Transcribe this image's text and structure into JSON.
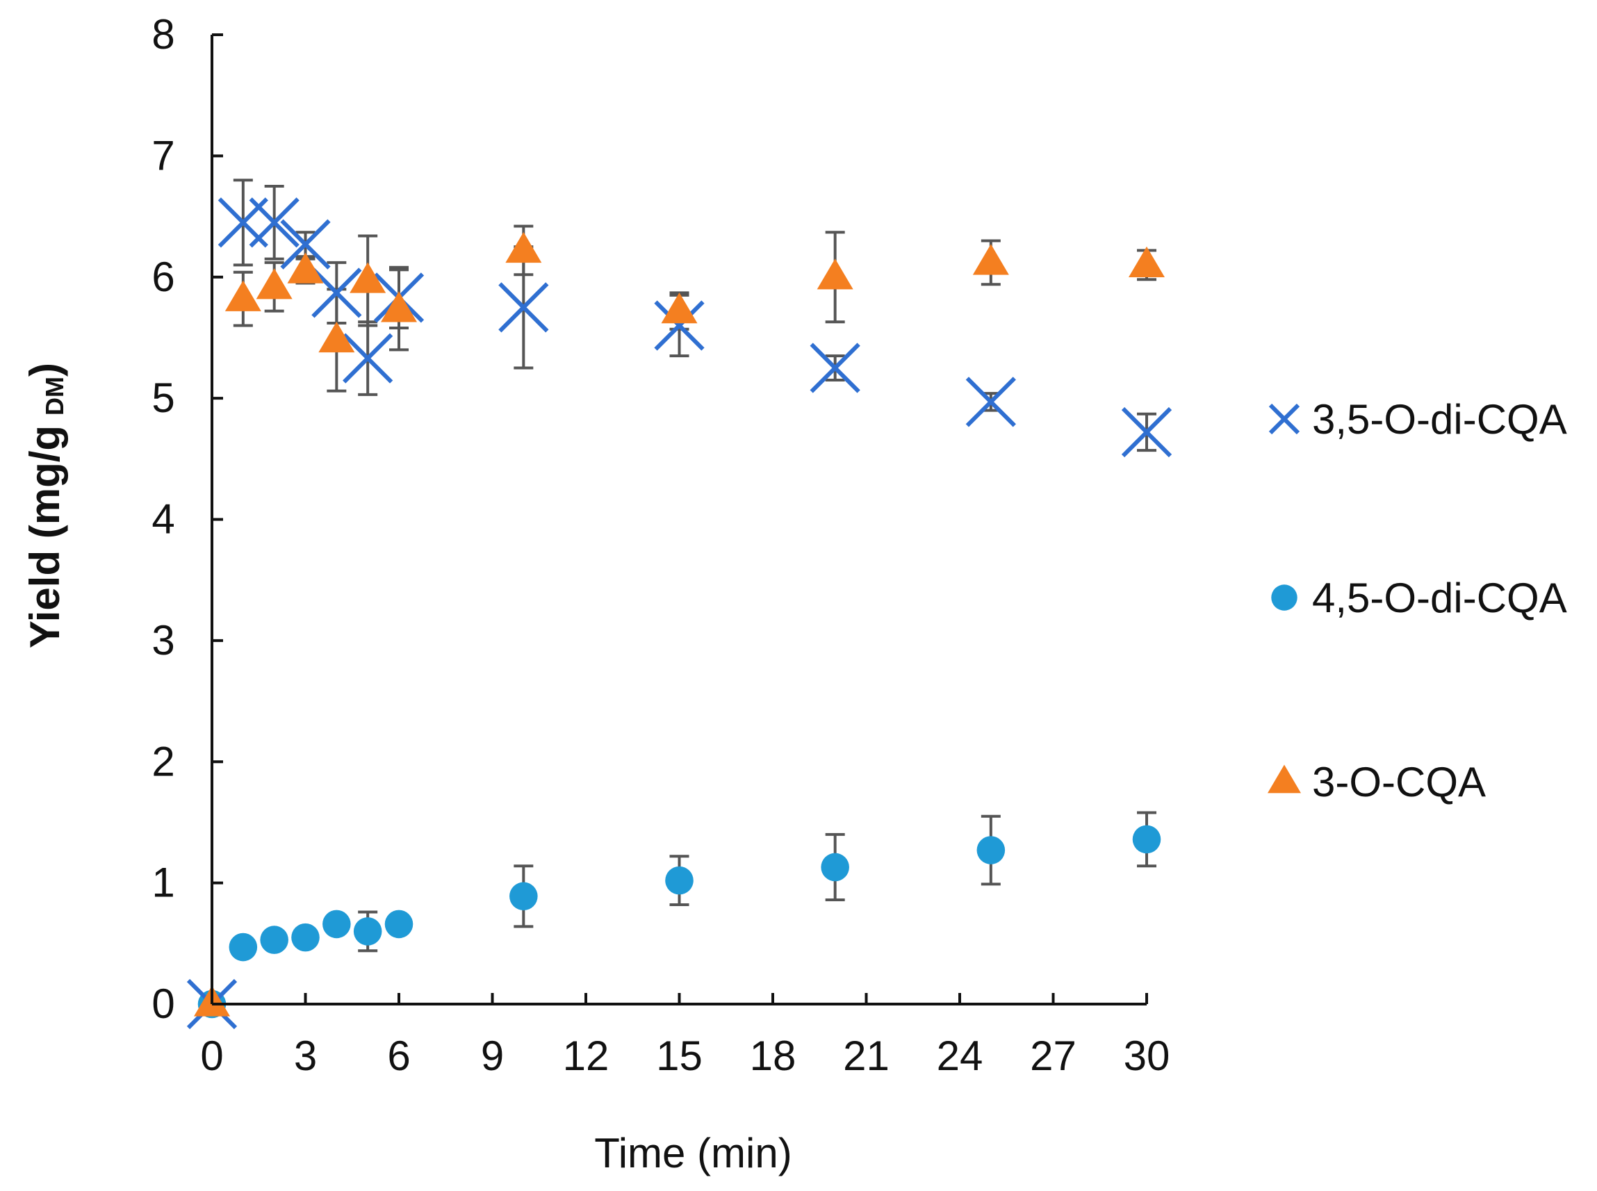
{
  "chart_data": {
    "type": "scatter",
    "title": "",
    "xlabel": "Time  (min)",
    "ylabel": {
      "main": "Yield (mg/g",
      "subscript": "DM",
      "close": ")"
    },
    "xlim": [
      0,
      30
    ],
    "ylim": [
      0,
      8
    ],
    "xticks": [
      "0",
      "3",
      "6",
      "9",
      "12",
      "15",
      "18",
      "21",
      "24",
      "27",
      "30"
    ],
    "yticks": [
      "0",
      "1",
      "2",
      "3",
      "4",
      "5",
      "6",
      "7",
      "8"
    ],
    "grid": false,
    "legend_position": "right",
    "series": [
      {
        "name": "3,5-O-di-CQA",
        "marker": "x",
        "color": "#2f6fd1",
        "points": [
          {
            "x": 0,
            "y": 0,
            "err": 0
          },
          {
            "x": 1,
            "y": 6.45,
            "err": 0.35
          },
          {
            "x": 2,
            "y": 6.45,
            "err": 0.3
          },
          {
            "x": 3,
            "y": 6.27,
            "err": 0.1
          },
          {
            "x": 4,
            "y": 5.87,
            "err": 0.25
          },
          {
            "x": 5,
            "y": 5.33,
            "err": 0.3
          },
          {
            "x": 6,
            "y": 5.83,
            "err": 0.25
          },
          {
            "x": 10,
            "y": 5.75,
            "err": 0.5
          },
          {
            "x": 15,
            "y": 5.6,
            "err": 0.25
          },
          {
            "x": 20,
            "y": 5.25,
            "err": 0.1
          },
          {
            "x": 25,
            "y": 4.97,
            "err": 0.07
          },
          {
            "x": 30,
            "y": 4.72,
            "err": 0.15
          }
        ]
      },
      {
        "name": "4,5-O-di-CQA",
        "marker": "circle",
        "color": "#1f9ad6",
        "points": [
          {
            "x": 0,
            "y": 0,
            "err": 0
          },
          {
            "x": 1,
            "y": 0.47,
            "err": 0
          },
          {
            "x": 2,
            "y": 0.53,
            "err": 0
          },
          {
            "x": 3,
            "y": 0.55,
            "err": 0
          },
          {
            "x": 4,
            "y": 0.66,
            "err": 0.05
          },
          {
            "x": 5,
            "y": 0.6,
            "err": 0.16
          },
          {
            "x": 6,
            "y": 0.66,
            "err": 0
          },
          {
            "x": 10,
            "y": 0.89,
            "err": 0.25
          },
          {
            "x": 15,
            "y": 1.02,
            "err": 0.2
          },
          {
            "x": 20,
            "y": 1.13,
            "err": 0.27
          },
          {
            "x": 25,
            "y": 1.27,
            "err": 0.28
          },
          {
            "x": 30,
            "y": 1.36,
            "err": 0.22
          }
        ]
      },
      {
        "name": "3-O-CQA",
        "marker": "triangle",
        "color": "#f47f20",
        "points": [
          {
            "x": 0,
            "y": 0,
            "err": 0
          },
          {
            "x": 1,
            "y": 5.82,
            "err": 0.22
          },
          {
            "x": 2,
            "y": 5.92,
            "err": 0.2
          },
          {
            "x": 3,
            "y": 6.05,
            "err": 0.1
          },
          {
            "x": 4,
            "y": 5.48,
            "err": 0.42
          },
          {
            "x": 5,
            "y": 5.97,
            "err": 0.37
          },
          {
            "x": 6,
            "y": 5.73,
            "err": 0.33
          },
          {
            "x": 10,
            "y": 6.22,
            "err": 0.2
          },
          {
            "x": 15,
            "y": 5.72,
            "err": 0.15
          },
          {
            "x": 20,
            "y": 6.0,
            "err": 0.37
          },
          {
            "x": 25,
            "y": 6.12,
            "err": 0.18
          },
          {
            "x": 30,
            "y": 6.1,
            "err": 0.12
          }
        ]
      }
    ],
    "colors": {
      "axis": "#111111",
      "error_bar": "#555555"
    }
  }
}
